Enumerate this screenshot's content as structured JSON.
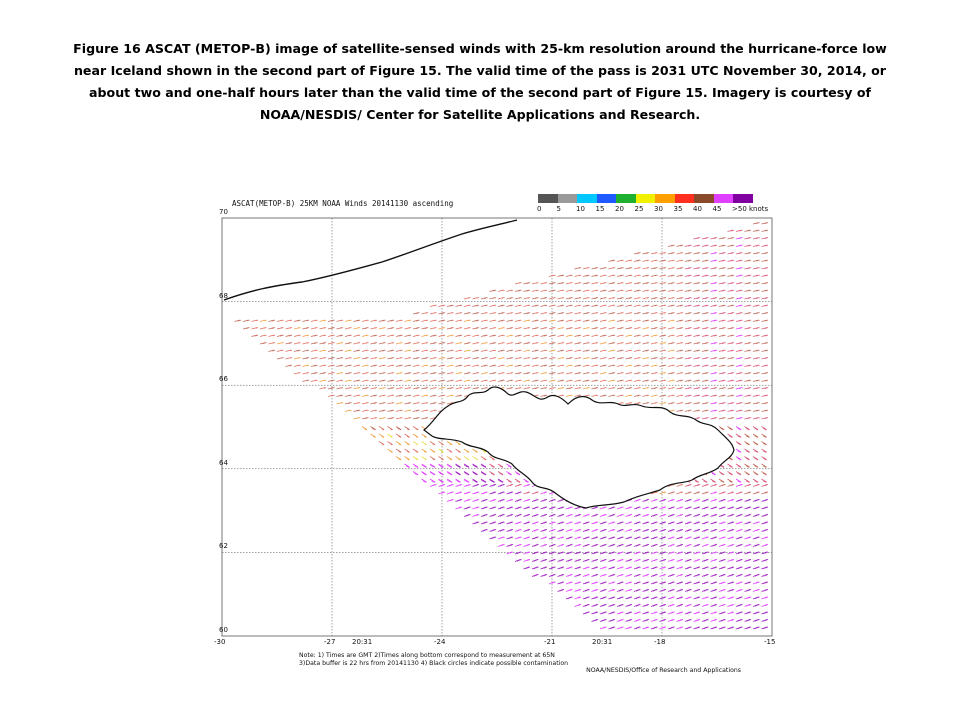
{
  "caption": {
    "line1": "Figure 16  ASCAT (METOP-B) image of satellite-sensed winds with 25-km resolution around the hurricane-force  low",
    "line2": "near Iceland shown in the second part of Figure 15.  The valid time of the pass is 2031 UTC November 30, 2014, or",
    "line3": "about two and one-half hours later than the valid time of the second part of Figure 15.  Imagery is courtesy of",
    "line4": "NOAA/NESDIS/ Center for Satellite Applications  and Research."
  },
  "map": {
    "title": "ASCAT(METOP-B) 25KM NOAA Winds 20141130 ascending",
    "colorbar": {
      "labels": [
        "0",
        "5",
        "10",
        "15",
        "20",
        "25",
        "30",
        "35",
        "40",
        "45",
        ">50 knots"
      ],
      "colors": [
        "#555555",
        "#9a9a9a",
        "#00c8ff",
        "#1e5aff",
        "#20b030",
        "#f0f000",
        "#ffa000",
        "#ff3020",
        "#8a4a2a",
        "#e040ff",
        "#8000a0"
      ]
    },
    "lat_labels": [
      "70",
      "68",
      "66",
      "64",
      "62",
      "60"
    ],
    "lon_labels": [
      "-30",
      "-27",
      "-24",
      "-21",
      "-18",
      "-15"
    ],
    "lat_values": [
      70,
      68,
      66,
      64,
      62,
      60
    ],
    "lon_values": [
      -30,
      -27,
      -24,
      -21,
      -18,
      -15
    ],
    "pass_times": [
      "20:31",
      "20:31"
    ],
    "notes": {
      "line1": "Note: 1) Times are GMT 2)Times along bottom correspond to measurement at 65N",
      "line2": "3)Data buffer is 22 hrs from 20141130 4) Black circles indicate possible contamination",
      "credit": "NOAA/NESDIS/Office of Research and Applications"
    }
  }
}
